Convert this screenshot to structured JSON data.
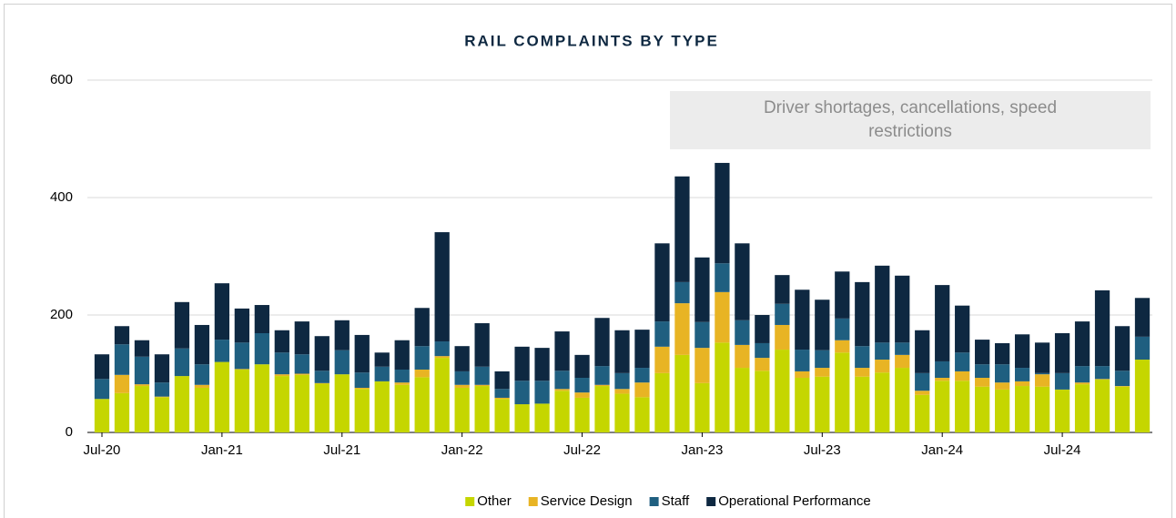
{
  "chart_data": {
    "type": "stacked-bar",
    "title": "RAIL COMPLAINTS BY TYPE",
    "annotation": "Driver shortages, cancellations, speed restrictions",
    "categories": [
      "Jul-20",
      null,
      null,
      null,
      null,
      null,
      "Jan-21",
      null,
      null,
      null,
      null,
      null,
      "Jul-21",
      null,
      null,
      null,
      null,
      null,
      "Jan-22",
      null,
      null,
      null,
      null,
      null,
      "Jul-22",
      null,
      null,
      null,
      null,
      null,
      "Jan-23",
      null,
      null,
      null,
      null,
      null,
      "Jul-23",
      null,
      null,
      null,
      null,
      null,
      "Jan-24",
      null,
      null,
      null,
      null,
      null,
      "Jul-24",
      null,
      null,
      null,
      null
    ],
    "series": [
      {
        "name": "Other",
        "color": "#c5d600",
        "values": [
          57,
          67,
          79,
          60,
          96,
          76,
          120,
          107,
          116,
          96,
          98,
          83,
          99,
          74,
          87,
          81,
          94,
          127,
          76,
          79,
          57,
          48,
          49,
          71,
          59,
          79,
          66,
          60,
          101,
          132,
          84,
          153,
          110,
          105,
          141,
          93,
          95,
          136,
          95,
          102,
          110,
          64,
          88,
          88,
          78,
          73,
          79,
          78,
          73,
          82,
          90,
          78,
          124
        ]
      },
      {
        "name": "Service Design",
        "color": "#e8b424",
        "values": [
          0,
          31,
          3,
          1,
          0,
          5,
          0,
          1,
          0,
          3,
          2,
          1,
          0,
          2,
          0,
          4,
          13,
          3,
          5,
          2,
          2,
          0,
          0,
          3,
          9,
          2,
          8,
          25,
          45,
          88,
          60,
          86,
          39,
          22,
          42,
          11,
          15,
          21,
          15,
          22,
          22,
          7,
          5,
          16,
          15,
          12,
          8,
          21,
          0,
          3,
          1,
          1,
          0
        ]
      },
      {
        "name": "Staff",
        "color": "#1f5f80",
        "values": [
          34,
          52,
          47,
          24,
          47,
          35,
          38,
          45,
          53,
          37,
          33,
          21,
          41,
          26,
          25,
          22,
          40,
          25,
          23,
          31,
          15,
          40,
          39,
          31,
          25,
          32,
          27,
          25,
          43,
          36,
          44,
          49,
          42,
          25,
          36,
          37,
          30,
          37,
          37,
          29,
          21,
          30,
          28,
          32,
          23,
          31,
          23,
          2,
          28,
          28,
          22,
          26,
          39
        ]
      },
      {
        "name": "Operational Performance",
        "color": "#0e2841",
        "values": [
          42,
          31,
          28,
          48,
          79,
          67,
          96,
          58,
          48,
          38,
          56,
          59,
          51,
          64,
          24,
          50,
          65,
          186,
          43,
          74,
          30,
          58,
          56,
          67,
          39,
          82,
          73,
          65,
          133,
          180,
          110,
          171,
          131,
          48,
          49,
          102,
          86,
          80,
          109,
          131,
          114,
          73,
          130,
          80,
          42,
          36,
          57,
          52,
          68,
          76,
          129,
          76,
          66
        ]
      }
    ],
    "ylim": [
      0,
      600
    ],
    "yticks": [
      0,
      200,
      400,
      600
    ],
    "grid": true,
    "legend": "bottom"
  }
}
